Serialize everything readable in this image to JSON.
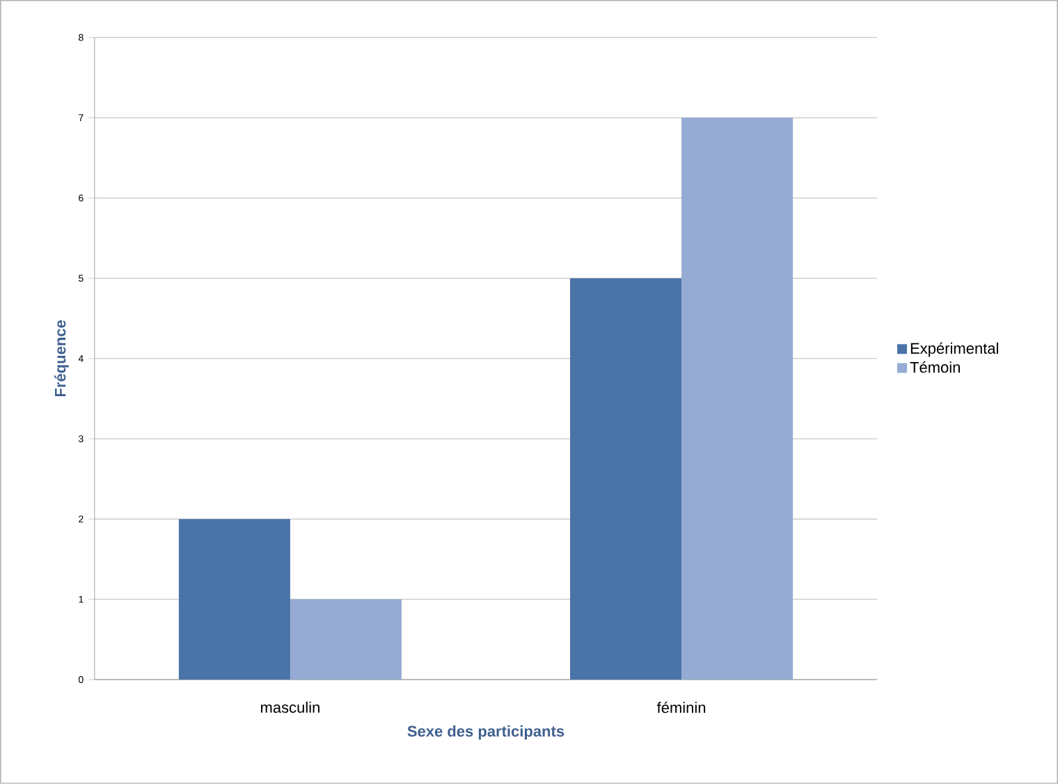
{
  "chart_data": {
    "type": "bar",
    "xlabel": "Sexe des participants",
    "ylabel": "Fréquence",
    "categories": [
      "masculin",
      "féminin"
    ],
    "series": [
      {
        "name": "Expérimental",
        "color": "#4a73a8",
        "values": [
          2,
          5
        ]
      },
      {
        "name": "Témoin",
        "color": "#95abd3",
        "values": [
          1,
          7
        ]
      }
    ],
    "ylim": [
      0,
      8
    ],
    "yticks": [
      0,
      1,
      2,
      3,
      4,
      5,
      6,
      7,
      8
    ],
    "grid": "y",
    "legend": "right"
  }
}
